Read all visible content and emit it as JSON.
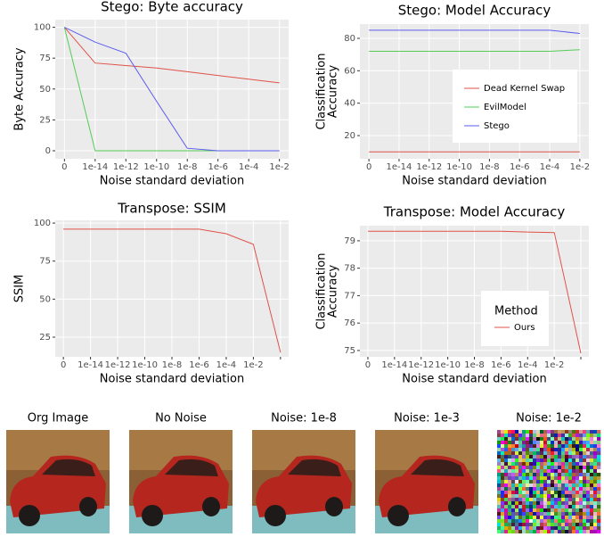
{
  "chart_data": [
    {
      "type": "line",
      "title": "Stego: Byte accuracy",
      "xlabel": "Noise standard deviation",
      "ylabel": "Byte Accuracy",
      "categories": [
        "0",
        "1e-14",
        "1e-12",
        "1e-10",
        "1e-8",
        "1e-6",
        "1e-4",
        "1e-2"
      ],
      "series": [
        {
          "color": "#e0524a",
          "values": [
            100,
            71,
            69,
            67,
            64,
            61,
            58,
            55
          ]
        },
        {
          "color": "#55cc55",
          "values": [
            100,
            0,
            0,
            0,
            0,
            0,
            0,
            0
          ]
        },
        {
          "color": "#5c5cf0",
          "values": [
            100,
            88,
            79,
            40,
            2,
            0,
            0,
            0
          ]
        }
      ],
      "ylim": [
        -6.5,
        106.2
      ],
      "yticks": [
        0,
        25,
        50,
        75,
        100
      ],
      "grid": true
    },
    {
      "type": "line",
      "title": "Stego: Model Accuracy",
      "xlabel": "Noise standard deviation",
      "ylabel": [
        "Classification",
        "Accuracy"
      ],
      "categories": [
        "0",
        "1e-14",
        "1e-12",
        "1e-10",
        "1e-8",
        "1e-6",
        "1e-4",
        "1e-2"
      ],
      "series": [
        {
          "name": "Dead Kernel Swap",
          "color": "#e0524a",
          "values": [
            10,
            10,
            10,
            10,
            10,
            10,
            10,
            10
          ]
        },
        {
          "name": "EvilModel",
          "color": "#55cc55",
          "values": [
            72,
            72,
            72,
            72,
            72,
            72,
            72,
            73
          ]
        },
        {
          "name": "Stego",
          "color": "#5c5cf0",
          "values": [
            85,
            85,
            85,
            85,
            85,
            85,
            85,
            83
          ]
        }
      ],
      "ylim": [
        5.7,
        88.8
      ],
      "yticks": [
        20,
        40,
        60,
        80
      ],
      "grid": true
    },
    {
      "type": "line",
      "title": "Transpose: SSIM",
      "xlabel": "Noise standard deviation",
      "ylabel": "SSIM",
      "categories": [
        "0",
        "1e-14",
        "1e-12",
        "1e-10",
        "1e-8",
        "1e-6",
        "1e-4",
        "1e-2",
        null
      ],
      "series": [
        {
          "color": "#e0524a",
          "values": [
            96,
            96,
            96,
            96,
            96,
            96,
            93,
            86,
            15
          ]
        }
      ],
      "ylim": [
        12.1,
        101.8
      ],
      "yticks": [
        25,
        50,
        75,
        100
      ],
      "grid": true
    },
    {
      "type": "line",
      "title": "Transpose: Model Accuracy",
      "xlabel": "Noise standard deviation",
      "ylabel": [
        "Classification",
        "Accuracy"
      ],
      "categories": [
        "0",
        "1e-14",
        "1e-12",
        "1e-10",
        "1e-8",
        "1e-6",
        "1e-4",
        "1e-2",
        null
      ],
      "legend_title": "Method",
      "series": [
        {
          "name": "Ours",
          "color": "#e0524a",
          "values": [
            79.35,
            79.35,
            79.35,
            79.35,
            79.35,
            79.35,
            79.32,
            79.3,
            74.9
          ]
        }
      ],
      "ylim": [
        74.77,
        79.55
      ],
      "yticks": [
        75,
        76,
        77,
        78,
        79
      ],
      "grid": true
    }
  ],
  "images": [
    {
      "caption": "Org Image"
    },
    {
      "caption": "No Noise"
    },
    {
      "caption": "Noise: 1e-8"
    },
    {
      "caption": "Noise: 1e-3"
    },
    {
      "caption": "Noise: 1e-2"
    }
  ]
}
